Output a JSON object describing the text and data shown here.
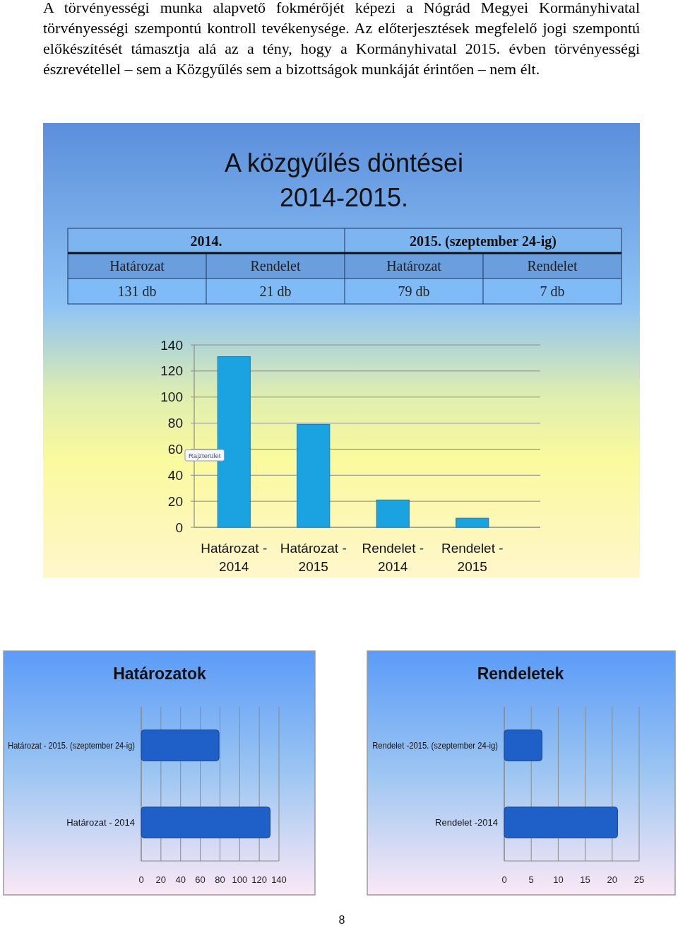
{
  "chart_data": [
    {
      "type": "other",
      "title": "A közgyűlés döntései\n2014-2015.",
      "annotations": [
        "A törvényességi munka alapvető fokmérőjét képezi a Nógrád Megyei Kormányhivatal\ntörvényességi szempontú kontroll tevékenysége. Az előterjesztések megfelelő jogi szempontú\nelőkészítését támasztja alá az a tény, hogy a Kormányhivatal 2015. évben törvényességi\nészrevétellel – sem a Közgyűlés sem a bizottságok munkáját érintően – nem élt.",
        "2014.",
        "2015. (szeptember 24-ig)",
        "Határozat",
        "Rendelet",
        "Határozat",
        "Rendelet",
        "131 db",
        "21 db",
        "79 db",
        "7 db"
      ]
    },
    {
      "type": "bar",
      "categories": [
        "Határozat - 2014",
        "Határozat - 2015",
        "Rendelet - 2014",
        "Rendelet - 2015"
      ],
      "values": [
        131,
        79,
        21,
        7
      ],
      "color": "#1aa3e0",
      "ylim": [
        0,
        140
      ],
      "yticks": [
        0,
        20,
        40,
        60,
        80,
        100,
        120,
        140
      ],
      "grid": "y",
      "annotations": [
        "Rajzterület"
      ]
    },
    {
      "type": "bar",
      "orientation": "horizontal",
      "title": "Határozatok",
      "categories": [
        "Határozat - 2015. (szeptember 24-ig)",
        "Határozat - 2014"
      ],
      "values": [
        79,
        131
      ],
      "color": "#1f5fc8",
      "xlim": [
        0,
        140
      ],
      "xticks": [
        0,
        20,
        40,
        60,
        80,
        100,
        120,
        140
      ],
      "grid": "x"
    },
    {
      "type": "bar",
      "orientation": "horizontal",
      "title": "Rendeletek",
      "categories": [
        "Rendelet -2015. (szeptember 24-ig)",
        "Rendelet -2014"
      ],
      "values": [
        7,
        21
      ],
      "color": "#1f5fc8",
      "xlim": [
        0,
        25
      ],
      "xticks": [
        0,
        5,
        10,
        15,
        20,
        25
      ],
      "grid": "x",
      "annotations": [
        "8"
      ]
    }
  ]
}
